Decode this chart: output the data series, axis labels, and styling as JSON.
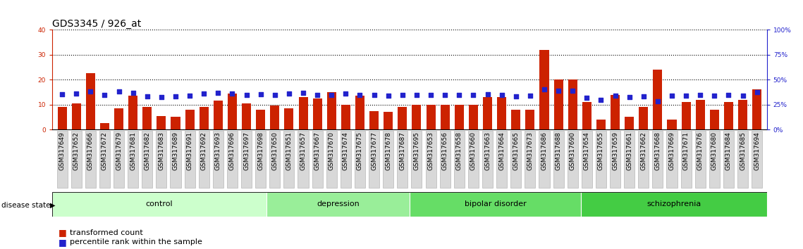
{
  "title": "GDS3345 / 926_at",
  "categories": [
    "GSM317649",
    "GSM317652",
    "GSM317666",
    "GSM317672",
    "GSM317679",
    "GSM317681",
    "GSM317682",
    "GSM317683",
    "GSM317689",
    "GSM317691",
    "GSM317692",
    "GSM317693",
    "GSM317696",
    "GSM317697",
    "GSM317698",
    "GSM317650",
    "GSM317651",
    "GSM317657",
    "GSM317667",
    "GSM317670",
    "GSM317674",
    "GSM317675",
    "GSM317677",
    "GSM317678",
    "GSM317687",
    "GSM317695",
    "GSM317653",
    "GSM317656",
    "GSM317658",
    "GSM317660",
    "GSM317663",
    "GSM317664",
    "GSM317665",
    "GSM317673",
    "GSM317686",
    "GSM317688",
    "GSM317690",
    "GSM317654",
    "GSM317655",
    "GSM317659",
    "GSM317661",
    "GSM317662",
    "GSM317668",
    "GSM317669",
    "GSM317671",
    "GSM317676",
    "GSM317680",
    "GSM317684",
    "GSM317685",
    "GSM317694"
  ],
  "bar_values": [
    9,
    10.5,
    22.5,
    2.5,
    8.5,
    13.5,
    9,
    5.5,
    5,
    8,
    9,
    11.5,
    14.5,
    10.5,
    8,
    9.5,
    8.5,
    13,
    12.5,
    15,
    10,
    13.5,
    7.5,
    7,
    9,
    10,
    10,
    10,
    10,
    10,
    13,
    13,
    8,
    8,
    32,
    20,
    20,
    11,
    4,
    14,
    5,
    9,
    24,
    4,
    11,
    12,
    8,
    11,
    12,
    16
  ],
  "percentile_values": [
    35.5,
    36,
    38,
    34.5,
    38,
    37,
    33,
    32.5,
    33.5,
    34,
    36,
    36.5,
    36,
    35,
    35.5,
    35,
    36,
    36.5,
    35,
    35,
    36,
    35,
    35,
    34,
    35,
    35,
    35,
    35,
    35,
    35,
    35.5,
    35,
    33,
    34,
    40,
    39,
    39,
    32,
    30,
    34,
    32.5,
    33,
    28,
    34,
    34,
    34.5,
    34,
    35,
    34,
    37.5
  ],
  "disease_groups": [
    {
      "label": "control",
      "start": 0,
      "end": 15,
      "color": "#ccffcc"
    },
    {
      "label": "depression",
      "start": 15,
      "end": 25,
      "color": "#99ee99"
    },
    {
      "label": "bipolar disorder",
      "start": 25,
      "end": 37,
      "color": "#66dd66"
    },
    {
      "label": "schizophrenia",
      "start": 37,
      "end": 50,
      "color": "#44cc44"
    }
  ],
  "bar_color": "#cc2200",
  "dot_color": "#2222cc",
  "left_ylim": [
    0,
    40
  ],
  "right_ylim": [
    0,
    100
  ],
  "left_yticks": [
    0,
    10,
    20,
    30,
    40
  ],
  "right_yticks": [
    0,
    25,
    50,
    75,
    100
  ],
  "right_yticklabels": [
    "0%",
    "25%",
    "50%",
    "75%",
    "100%"
  ],
  "left_ycolor": "#cc2200",
  "right_ycolor": "#2222cc",
  "title_fontsize": 10,
  "tick_fontsize": 6.5,
  "label_fontsize": 8,
  "legend_label_bar": "transformed count",
  "legend_label_dot": "percentile rank within the sample",
  "disease_state_label": "disease state"
}
